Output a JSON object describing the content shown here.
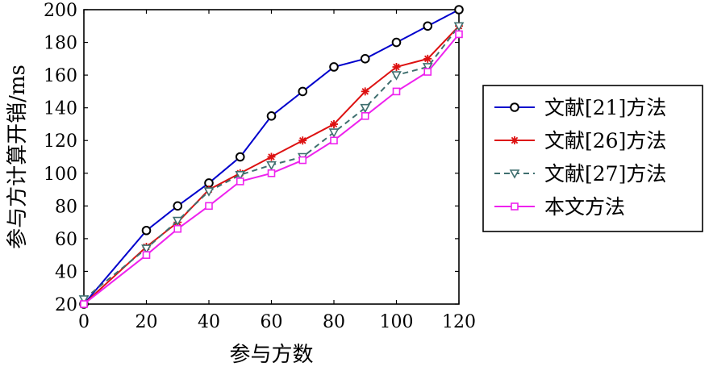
{
  "chart_data": {
    "type": "line",
    "xlabel": "参与方数",
    "ylabel": "参与方计算开销/ms",
    "xlim": [
      0,
      120
    ],
    "ylim": [
      20,
      200
    ],
    "xticks": [
      0,
      20,
      40,
      60,
      80,
      100,
      120
    ],
    "yticks": [
      20,
      40,
      60,
      80,
      100,
      120,
      140,
      160,
      180,
      200
    ],
    "x": [
      0,
      20,
      30,
      40,
      50,
      60,
      70,
      80,
      90,
      100,
      110,
      120
    ],
    "grid": false,
    "legend_position": "right",
    "series": [
      {
        "name": "文献[21]方法",
        "color": "#0000cc",
        "marker": "circle",
        "dash": "solid",
        "values": [
          20,
          65,
          80,
          94,
          110,
          135,
          150,
          165,
          170,
          180,
          190,
          200
        ]
      },
      {
        "name": "文献[26]方法",
        "color": "#dd1111",
        "marker": "asterisk",
        "dash": "solid",
        "values": [
          20,
          55,
          70,
          90,
          100,
          110,
          120,
          130,
          150,
          165,
          170,
          190
        ]
      },
      {
        "name": "文献[27]方法",
        "color": "#3f6f6f",
        "marker": "triangle-down",
        "dash": "dashed",
        "values": [
          23,
          54,
          71,
          89,
          99,
          105,
          110,
          125,
          140,
          160,
          165,
          190
        ]
      },
      {
        "name": "本文方法",
        "color": "#ee22ee",
        "marker": "square",
        "dash": "solid",
        "values": [
          20,
          50,
          66,
          80,
          95,
          100,
          108,
          120,
          135,
          150,
          162,
          185
        ]
      }
    ]
  }
}
